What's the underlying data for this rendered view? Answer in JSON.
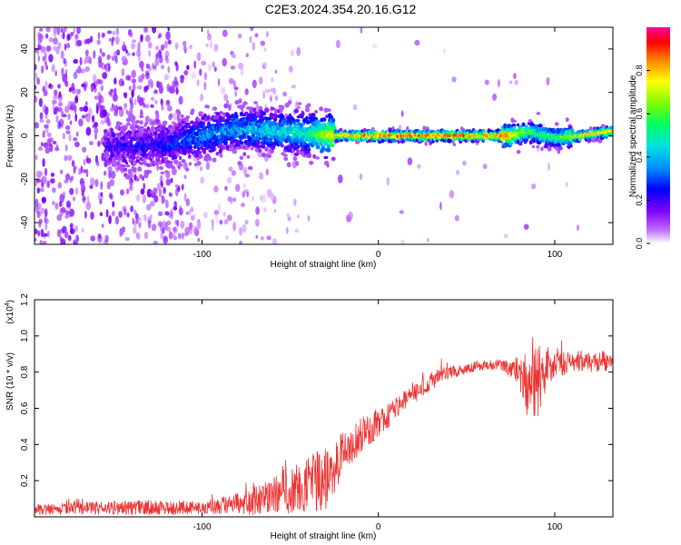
{
  "title": "C2E3.2024.354.20.16.G12",
  "chart_data": [
    {
      "type": "heatmap",
      "xlabel": "Height of straight line (km)",
      "ylabel": "Frequency (Hz)",
      "xlim": [
        -195,
        133
      ],
      "ylim": [
        -50,
        50
      ],
      "xticks": [
        -100,
        0,
        100
      ],
      "xtick_labels": [
        "-100",
        "0",
        "100"
      ],
      "yticks": [
        -40,
        -20,
        0,
        20,
        40
      ],
      "ytick_labels": [
        "-40",
        "-20",
        "0",
        "20",
        "40"
      ],
      "colorbar": {
        "label": "Normalized spectral amplitude",
        "range": [
          0,
          1
        ],
        "ticks": [
          0.0,
          0.2,
          0.4,
          0.6,
          0.8
        ],
        "tick_labels": [
          "0.0",
          "0.2",
          "0.4",
          "0.6",
          "0.8"
        ],
        "colormap": "rainbow"
      },
      "ridge": {
        "x": [
          -150,
          -120,
          -100,
          -80,
          -60,
          -40,
          -25,
          0,
          25,
          50,
          75,
          85,
          100,
          115,
          133
        ],
        "frequency": [
          -5,
          -4,
          0,
          3,
          2,
          1,
          0,
          0,
          0,
          0,
          0,
          2,
          -1,
          0,
          2
        ],
        "amplitude": [
          0.2,
          0.25,
          0.35,
          0.4,
          0.45,
          0.5,
          0.8,
          0.9,
          0.9,
          0.9,
          0.85,
          0.6,
          0.55,
          0.8,
          0.85
        ]
      },
      "grid": false,
      "legend": "colorbar-right"
    },
    {
      "type": "line",
      "xlabel": "Height of straight line (km)",
      "ylabel": "SNR (10 * v/v)",
      "y_multiplier": "(x10",
      "y_multiplier_exp": "4",
      "y_multiplier_close": ")",
      "xlim": [
        -195,
        133
      ],
      "ylim": [
        0,
        1.2
      ],
      "xticks": [
        -100,
        0,
        100
      ],
      "xtick_labels": [
        "-100",
        "0",
        "100"
      ],
      "yticks": [
        0.2,
        0.4,
        0.6,
        0.8,
        1.0,
        1.2
      ],
      "ytick_labels": [
        "0.2",
        "0.4",
        "0.6",
        "0.8",
        "1.0",
        "1.2"
      ],
      "color": "#ee3333",
      "series": [
        {
          "x": [
            -195,
            -150,
            -100,
            -80,
            -70,
            -60,
            -50,
            -40,
            -30,
            -20,
            -10,
            0,
            10,
            20,
            30,
            40,
            50,
            60,
            70,
            75,
            80,
            85,
            90,
            95,
            100,
            110,
            120,
            133
          ],
          "values": [
            0.04,
            0.05,
            0.05,
            0.07,
            0.09,
            0.12,
            0.15,
            0.18,
            0.2,
            0.35,
            0.45,
            0.52,
            0.6,
            0.68,
            0.75,
            0.8,
            0.82,
            0.84,
            0.84,
            0.82,
            0.8,
            0.72,
            0.75,
            0.82,
            0.86,
            0.84,
            0.85,
            0.87
          ],
          "noise": [
            0.03,
            0.04,
            0.04,
            0.06,
            0.08,
            0.1,
            0.14,
            0.16,
            0.18,
            0.12,
            0.1,
            0.08,
            0.07,
            0.06,
            0.05,
            0.04,
            0.03,
            0.03,
            0.03,
            0.05,
            0.1,
            0.2,
            0.22,
            0.15,
            0.08,
            0.06,
            0.05,
            0.06
          ]
        }
      ],
      "grid": false
    }
  ]
}
